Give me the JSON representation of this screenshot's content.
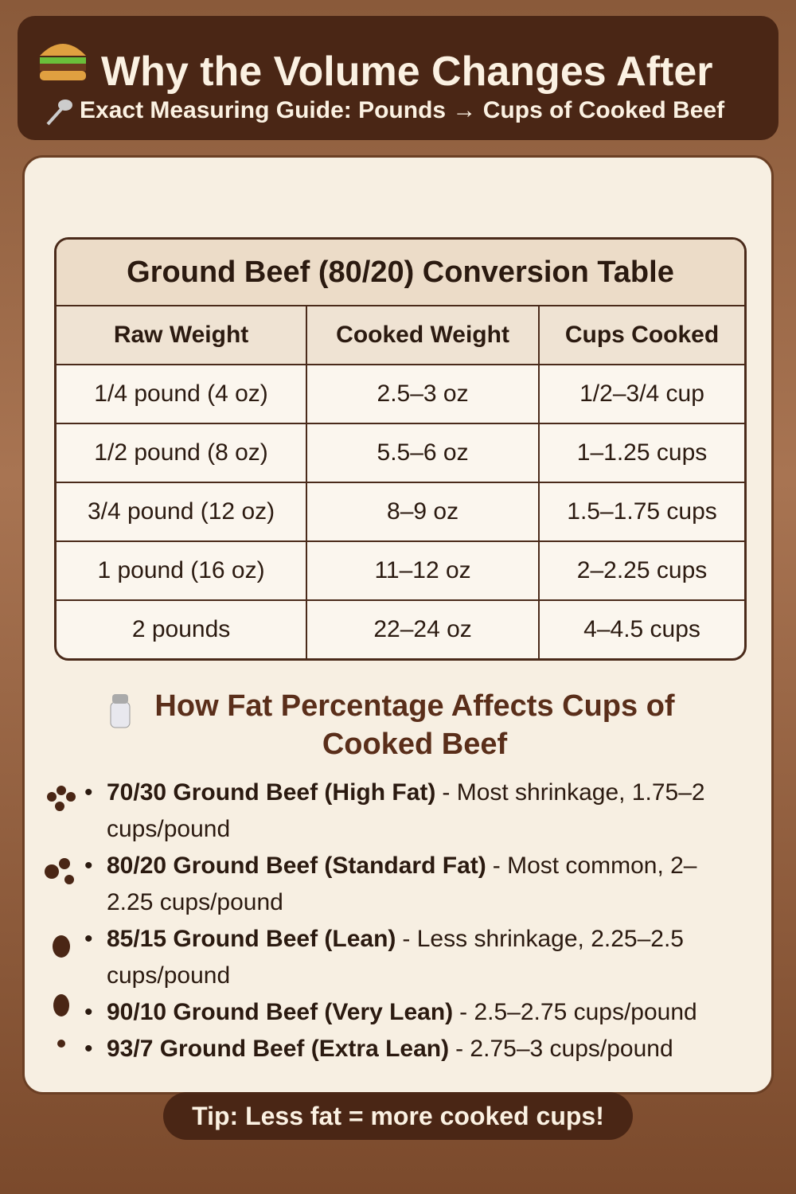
{
  "header": {
    "title": "Why the Volume Changes After",
    "subtitle": "Exact Measuring Guide: Pounds → Cups of Cooked Beef"
  },
  "table": {
    "title": "Ground Beef (80/20) Conversion Table",
    "columns": [
      "Raw Weight",
      "Cooked Weight",
      "Cups Cooked"
    ],
    "rows": [
      [
        "1/4 pound (4 oz)",
        "2.5–3 oz",
        "1/2–3/4 cup"
      ],
      [
        "1/2 pound (8 oz)",
        "5.5–6 oz",
        "1–1.25 cups"
      ],
      [
        "3/4 pound (12 oz)",
        "8–9 oz",
        "1.5–1.75 cups"
      ],
      [
        "1 pound (16 oz)",
        "11–12 oz",
        "2–2.25 cups"
      ],
      [
        "2 pounds",
        "22–24 oz",
        "4–4.5 cups"
      ]
    ]
  },
  "fat_section": {
    "heading": "How Fat Percentage Affects Cups of Cooked Beef",
    "items": [
      {
        "label": "70/30 Ground Beef (High Fat)",
        "text": "- Most shrinkage, 1.75–2 cups/pound"
      },
      {
        "label": "80/20 Ground Beef (Standard Fat)",
        "text": "- Most common, 2–2.25 cups/pound"
      },
      {
        "label": "85/15 Ground Beef (Lean)",
        "text": "- Less shrinkage, 2.25–2.5 cups/pound"
      },
      {
        "label": "90/10 Ground Beef (Very Lean)",
        "text": "- 2.5–2.75 cups/pound"
      },
      {
        "label": "93/7 Ground Beef (Extra Lean)",
        "text": "- 2.75–3 cups/pound"
      }
    ]
  },
  "tip": "Tip: Less fat = more cooked cups!"
}
